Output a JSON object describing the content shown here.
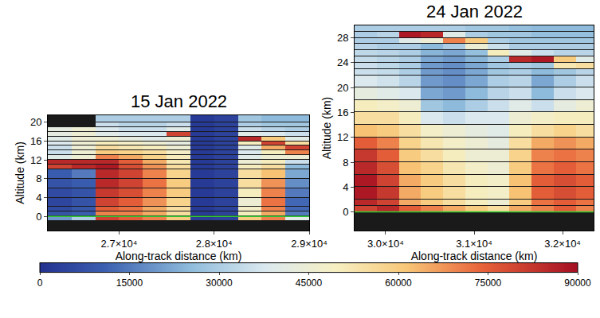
{
  "chart_data": [
    {
      "type": "heatmap",
      "title": "15 Jan 2022",
      "x_label": "Along-track distance (km)",
      "y_label": "Altitude (km)",
      "xlim": [
        26250,
        29000
      ],
      "xticks": [
        {
          "value": 27000,
          "label": "2.7×10⁴"
        },
        {
          "value": 28000,
          "label": "2.8×10⁴"
        },
        {
          "value": 29000,
          "label": "2.9×10⁴"
        }
      ],
      "ylim": [
        -3,
        21.5
      ],
      "yticks": [
        0,
        4,
        8,
        12,
        16,
        20
      ],
      "ground_line": 0,
      "x_bins": [
        26250,
        26500,
        26750,
        27000,
        27250,
        27500,
        27750,
        28000,
        28250,
        28500,
        28750,
        29000
      ],
      "y_bins": [
        -3,
        -1,
        0,
        1,
        2,
        4,
        6,
        8,
        10,
        11,
        12,
        13,
        14,
        15,
        16,
        17,
        18,
        19,
        20,
        21.5
      ],
      "z": [
        [
          null,
          null,
          null,
          null,
          null,
          null,
          null,
          null,
          null,
          null,
          null
        ],
        [
          20000,
          30000,
          80000,
          75000,
          70000,
          60000,
          3000,
          4000,
          60000,
          70000,
          40000
        ],
        [
          8000,
          10000,
          70000,
          70000,
          65000,
          55000,
          2000,
          4000,
          50000,
          65000,
          15000
        ],
        [
          6000,
          9000,
          75000,
          72000,
          65000,
          55000,
          2000,
          4000,
          48000,
          70000,
          12000
        ],
        [
          5000,
          8000,
          80000,
          75000,
          68000,
          58000,
          2000,
          4000,
          45000,
          72000,
          12000
        ],
        [
          6000,
          8000,
          82000,
          78000,
          70000,
          60000,
          2000,
          4000,
          50000,
          70000,
          15000
        ],
        [
          8000,
          10000,
          85000,
          80000,
          72000,
          60000,
          2000,
          4000,
          55000,
          68000,
          18000
        ],
        [
          10000,
          15000,
          85000,
          80000,
          70000,
          58000,
          2000,
          4000,
          55000,
          62000,
          22000
        ],
        [
          80000,
          85000,
          88000,
          78000,
          68000,
          55000,
          2000,
          4000,
          50000,
          55000,
          25000
        ],
        [
          85000,
          85000,
          85000,
          75000,
          65000,
          52000,
          2000,
          4000,
          45000,
          50000,
          35000
        ],
        [
          40000,
          45000,
          70000,
          65000,
          58000,
          50000,
          2000,
          4000,
          40000,
          45000,
          45000
        ],
        [
          35000,
          45000,
          60000,
          58000,
          55000,
          48000,
          2000,
          4000,
          38000,
          50000,
          70000
        ],
        [
          35000,
          45000,
          55000,
          52000,
          50000,
          45000,
          2000,
          4000,
          40000,
          65000,
          80000
        ],
        [
          38000,
          45000,
          50000,
          48000,
          45000,
          42000,
          2000,
          4000,
          50000,
          80000,
          55000
        ],
        [
          40000,
          45000,
          45000,
          42000,
          40000,
          45000,
          2000,
          4000,
          85000,
          60000,
          40000
        ],
        [
          42000,
          45000,
          40000,
          38000,
          38000,
          80000,
          2000,
          4000,
          40000,
          38000,
          35000
        ],
        [
          42000,
          45000,
          38000,
          35000,
          35000,
          40000,
          2000,
          4000,
          35000,
          32000,
          30000
        ],
        [
          null,
          null,
          35000,
          32000,
          32000,
          35000,
          2000,
          4000,
          30000,
          28000,
          28000
        ],
        [
          null,
          null,
          30000,
          30000,
          30000,
          30000,
          2000,
          4000,
          28000,
          25000,
          25000
        ]
      ]
    },
    {
      "type": "heatmap",
      "title": "24 Jan 2022",
      "x_label": "Along-track distance (km)",
      "y_label": "Altitude (km)",
      "xlim": [
        29650,
        32350
      ],
      "xticks": [
        {
          "value": 30000,
          "label": "3.0×10⁴"
        },
        {
          "value": 31000,
          "label": "3.1×10⁴"
        },
        {
          "value": 32000,
          "label": "3.2×10⁴"
        }
      ],
      "ylim": [
        -3,
        30
      ],
      "yticks": [
        0,
        4,
        8,
        12,
        16,
        20,
        24,
        28
      ],
      "ground_line": 0,
      "x_bins": [
        29650,
        29900,
        30150,
        30400,
        30650,
        30900,
        31150,
        31400,
        31650,
        31900,
        32150,
        32350
      ],
      "y_bins": [
        -3,
        0,
        1,
        2,
        4,
        6,
        8,
        10,
        12,
        14,
        16,
        18,
        20,
        22,
        23,
        24,
        25,
        26,
        27,
        28,
        29,
        30
      ],
      "z": [
        [
          null,
          null,
          null,
          null,
          null,
          null,
          null,
          null,
          null,
          null,
          null
        ],
        [
          80000,
          85000,
          75000,
          70000,
          65000,
          60000,
          55000,
          65000,
          70000,
          75000,
          70000
        ],
        [
          85000,
          80000,
          65000,
          60000,
          55000,
          50000,
          45000,
          60000,
          72000,
          75000,
          72000
        ],
        [
          88000,
          82000,
          65000,
          60000,
          55000,
          50000,
          48000,
          62000,
          75000,
          78000,
          75000
        ],
        [
          88000,
          80000,
          65000,
          60000,
          55000,
          50000,
          48000,
          62000,
          75000,
          78000,
          75000
        ],
        [
          85000,
          78000,
          62000,
          58000,
          52000,
          48000,
          45000,
          60000,
          72000,
          75000,
          72000
        ],
        [
          82000,
          75000,
          60000,
          55000,
          50000,
          45000,
          45000,
          58000,
          70000,
          72000,
          70000
        ],
        [
          75000,
          70000,
          58000,
          52000,
          48000,
          45000,
          42000,
          55000,
          65000,
          68000,
          65000
        ],
        [
          62000,
          60000,
          55000,
          48000,
          45000,
          42000,
          40000,
          50000,
          55000,
          58000,
          55000
        ],
        [
          55000,
          55000,
          50000,
          38000,
          35000,
          38000,
          38000,
          45000,
          48000,
          50000,
          50000
        ],
        [
          50000,
          48000,
          45000,
          28000,
          25000,
          30000,
          35000,
          40000,
          35000,
          42000,
          45000
        ],
        [
          42000,
          40000,
          38000,
          22000,
          20000,
          25000,
          32000,
          35000,
          25000,
          35000,
          38000
        ],
        [
          38000,
          36000,
          32000,
          20000,
          18000,
          22000,
          30000,
          32000,
          22000,
          30000,
          35000
        ],
        [
          35000,
          34000,
          30000,
          20000,
          18000,
          22000,
          28000,
          30000,
          25000,
          28000,
          32000
        ],
        [
          35000,
          33000,
          30000,
          20000,
          18000,
          22000,
          28000,
          30000,
          28000,
          52000,
          55000
        ],
        [
          34000,
          32000,
          30000,
          22000,
          20000,
          24000,
          30000,
          85000,
          88000,
          60000,
          40000
        ],
        [
          33000,
          32000,
          30000,
          24000,
          22000,
          26000,
          50000,
          40000,
          35000,
          32000,
          32000
        ],
        [
          32000,
          30000,
          30000,
          25000,
          30000,
          45000,
          35000,
          30000,
          30000,
          30000,
          30000
        ],
        [
          30000,
          30000,
          40000,
          45000,
          70000,
          60000,
          30000,
          28000,
          28000,
          28000,
          28000
        ],
        [
          30000,
          32000,
          88000,
          85000,
          40000,
          30000,
          28000,
          28000,
          26000,
          26000,
          26000
        ],
        [
          30000,
          30000,
          30000,
          30000,
          30000,
          28000,
          28000,
          26000,
          25000,
          25000,
          25000
        ]
      ]
    }
  ],
  "color_bar": {
    "range": [
      0,
      90000
    ],
    "ticks": [
      0,
      15000,
      30000,
      45000,
      60000,
      75000,
      90000
    ]
  }
}
